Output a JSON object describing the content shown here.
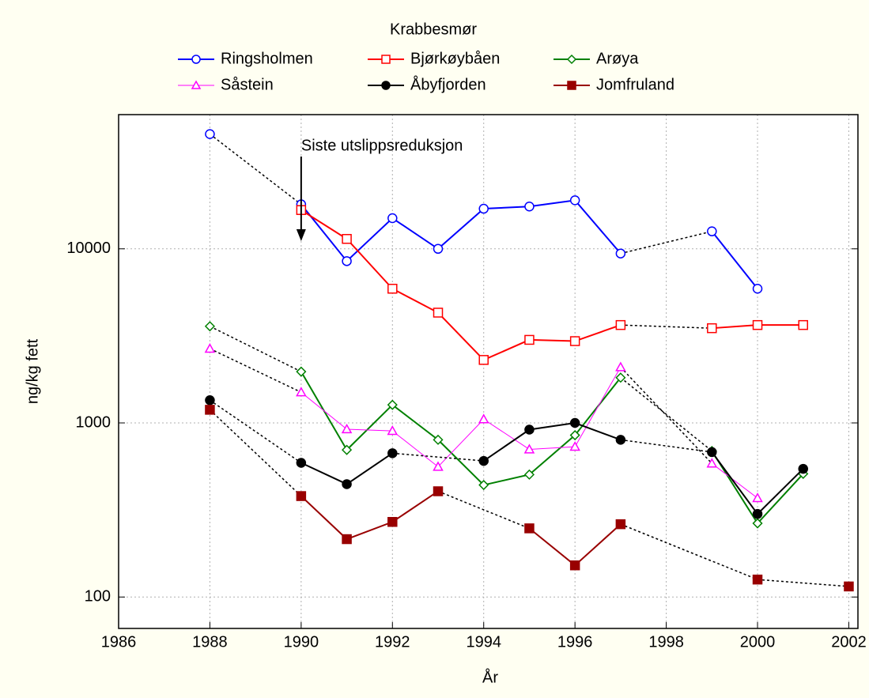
{
  "chart_data": {
    "type": "line",
    "legend_title": "Krabbesmør",
    "xlabel": "År",
    "ylabel": "ng/kg fett",
    "annotation": {
      "text": "Siste utslippsreduksjon",
      "x": 1990
    },
    "x": [
      1988,
      1989,
      1990,
      1991,
      1992,
      1993,
      1994,
      1995,
      1996,
      1997,
      1998,
      1999,
      2000,
      2001,
      2002
    ],
    "xlim": [
      1986,
      2002.2
    ],
    "xticks": [
      1986,
      1988,
      1990,
      1992,
      1994,
      1996,
      1998,
      2000,
      2002
    ],
    "ylim": [
      66,
      59000
    ],
    "yticks": [
      100,
      1000,
      10000
    ],
    "log_y": true,
    "grid": true,
    "series": [
      {
        "name": "Ringsholmen",
        "color": "#0000ff",
        "marker": "circle",
        "filled": false,
        "values": [
          45600,
          null,
          18000,
          8500,
          15000,
          10000,
          17000,
          17500,
          19000,
          9400,
          null,
          12600,
          5900,
          null,
          null
        ]
      },
      {
        "name": "Bjørkøybåen",
        "color": "#ff0000",
        "marker": "square",
        "filled": false,
        "values": [
          null,
          null,
          16700,
          11400,
          5900,
          4300,
          2300,
          3000,
          2950,
          3650,
          null,
          3500,
          3650,
          3650,
          null
        ]
      },
      {
        "name": "Arøya",
        "color": "#008000",
        "marker": "diamond",
        "filled": false,
        "values": [
          3590,
          null,
          1970,
          700,
          1270,
          800,
          440,
          505,
          850,
          1820,
          null,
          690,
          265,
          510,
          null
        ]
      },
      {
        "name": "Såstein",
        "color": "#ff00ff",
        "marker": "triangle",
        "filled": false,
        "values": [
          2670,
          null,
          1500,
          920,
          900,
          560,
          1050,
          705,
          730,
          2090,
          null,
          585,
          370,
          null,
          null
        ]
      },
      {
        "name": "Åbyfjorden",
        "color": "#000000",
        "marker": "circle",
        "filled": true,
        "values": [
          1350,
          null,
          590,
          445,
          670,
          null,
          605,
          915,
          1000,
          800,
          null,
          680,
          300,
          545,
          null
        ]
      },
      {
        "name": "Jomfruland",
        "color": "#990000",
        "marker": "square",
        "filled": true,
        "values": [
          1190,
          null,
          380,
          215,
          270,
          405,
          null,
          248,
          152,
          262,
          null,
          null,
          126,
          null,
          115
        ]
      }
    ]
  }
}
